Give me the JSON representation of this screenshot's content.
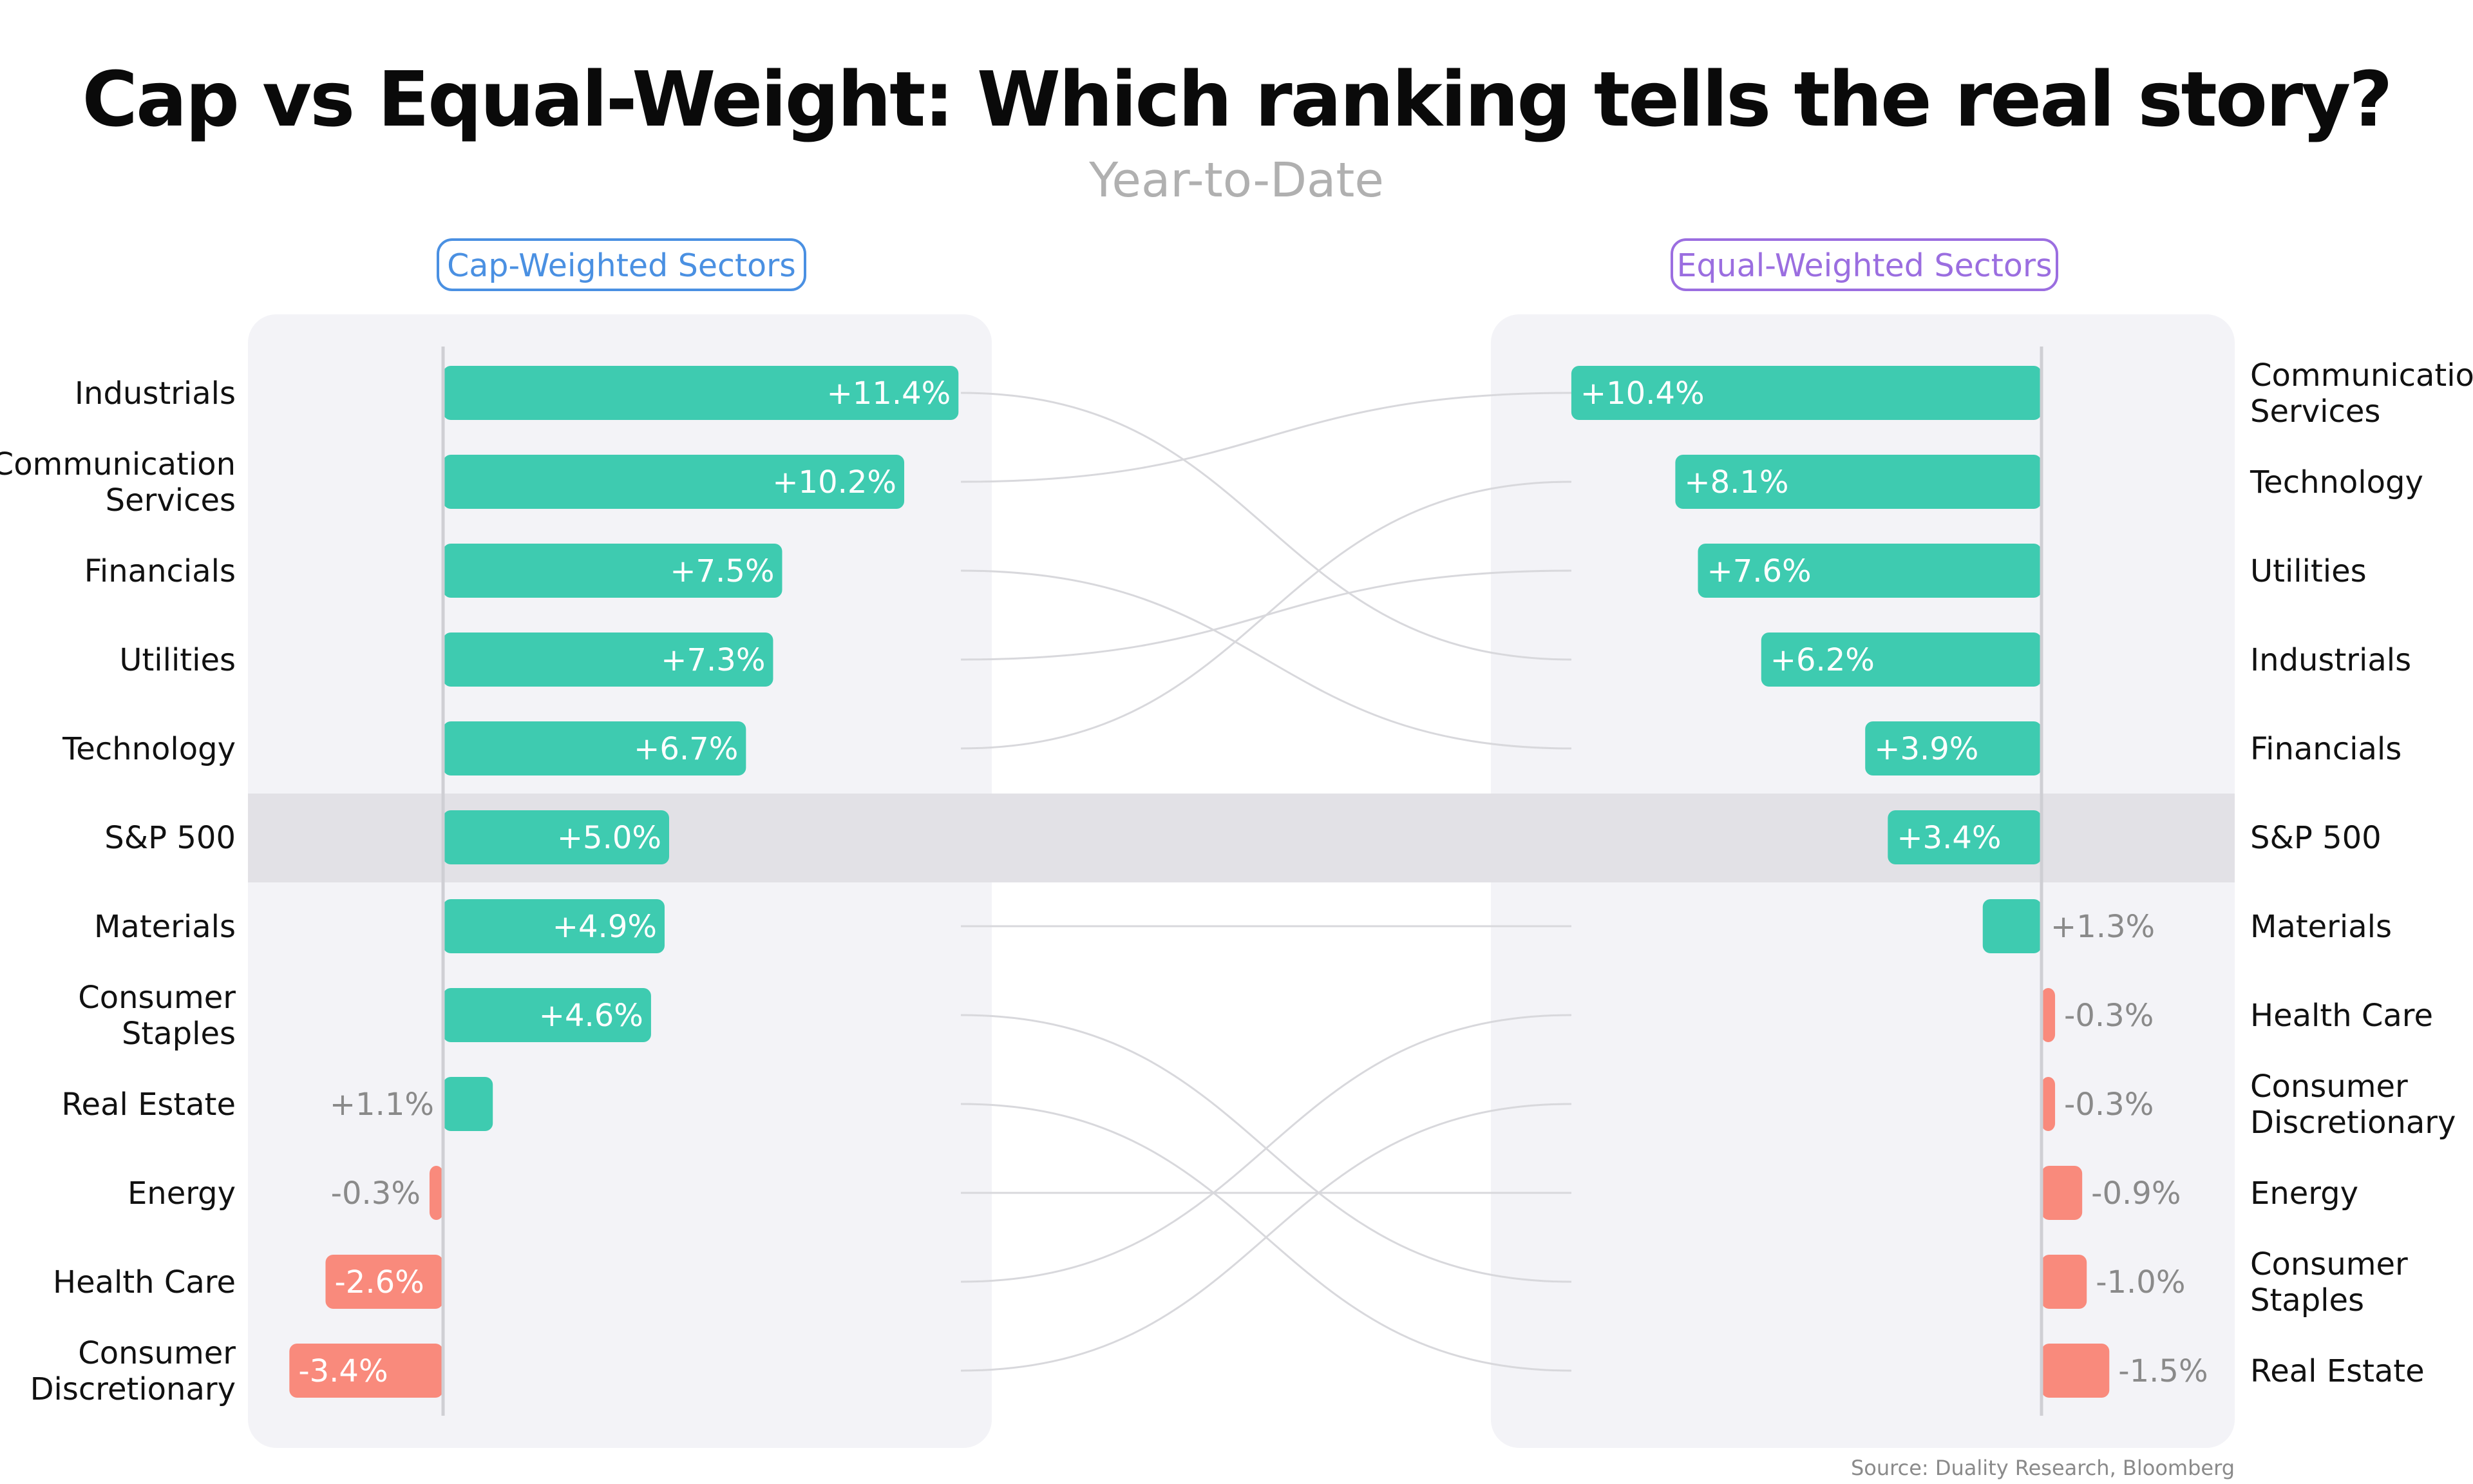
{
  "title": "Cap vs Equal-Weight: Which ranking tells the real story?",
  "subtitle": "Year-to-Date",
  "source": "Source: Duality Research, Bloomberg",
  "colors": {
    "positive": "#3ecbb0",
    "negative": "#f98a7c",
    "cap_accent": "#4a90e2",
    "equal_accent": "#9b6ee0",
    "highlight": "#e2e1e6",
    "panel": "#f3f3f7"
  },
  "chart_data": [
    {
      "type": "bar",
      "orientation": "horizontal",
      "title": "Cap-Weighted Sectors",
      "categories": [
        [
          "Industrials"
        ],
        [
          "Communication",
          "Services"
        ],
        [
          "Financials"
        ],
        [
          "Utilities"
        ],
        [
          "Technology"
        ],
        [
          "S&P 500"
        ],
        [
          "Materials"
        ],
        [
          "Consumer",
          "Staples"
        ],
        [
          "Real Estate"
        ],
        [
          "Energy"
        ],
        [
          "Health Care"
        ],
        [
          "Consumer",
          "Discretionary"
        ]
      ],
      "values": [
        11.4,
        10.2,
        7.5,
        7.3,
        6.7,
        5.0,
        4.9,
        4.6,
        1.1,
        -0.3,
        -2.6,
        -3.4
      ],
      "labels": [
        "+11.4%",
        "+10.2%",
        "+7.5%",
        "+7.3%",
        "+6.7%",
        "+5.0%",
        "+4.9%",
        "+4.6%",
        "+1.1%",
        "-0.3%",
        "-2.6%",
        "-3.4%"
      ],
      "highlight": "S&P 500"
    },
    {
      "type": "bar",
      "orientation": "horizontal",
      "title": "Equal-Weighted Sectors",
      "categories": [
        [
          "Communication",
          "Services"
        ],
        [
          "Technology"
        ],
        [
          "Utilities"
        ],
        [
          "Industrials"
        ],
        [
          "Financials"
        ],
        [
          "S&P 500"
        ],
        [
          "Materials"
        ],
        [
          "Health Care"
        ],
        [
          "Consumer",
          "Discretionary"
        ],
        [
          "Energy"
        ],
        [
          "Consumer",
          "Staples"
        ],
        [
          "Real Estate"
        ]
      ],
      "values": [
        10.4,
        8.1,
        7.6,
        6.2,
        3.9,
        3.4,
        1.3,
        -0.3,
        -0.3,
        -0.9,
        -1.0,
        -1.5
      ],
      "labels": [
        "+10.4%",
        "+8.1%",
        "+7.6%",
        "+6.2%",
        "+3.9%",
        "+3.4%",
        "+1.3%",
        "-0.3%",
        "-0.3%",
        "-0.9%",
        "-1.0%",
        "-1.5%"
      ],
      "highlight": "S&P 500"
    }
  ]
}
